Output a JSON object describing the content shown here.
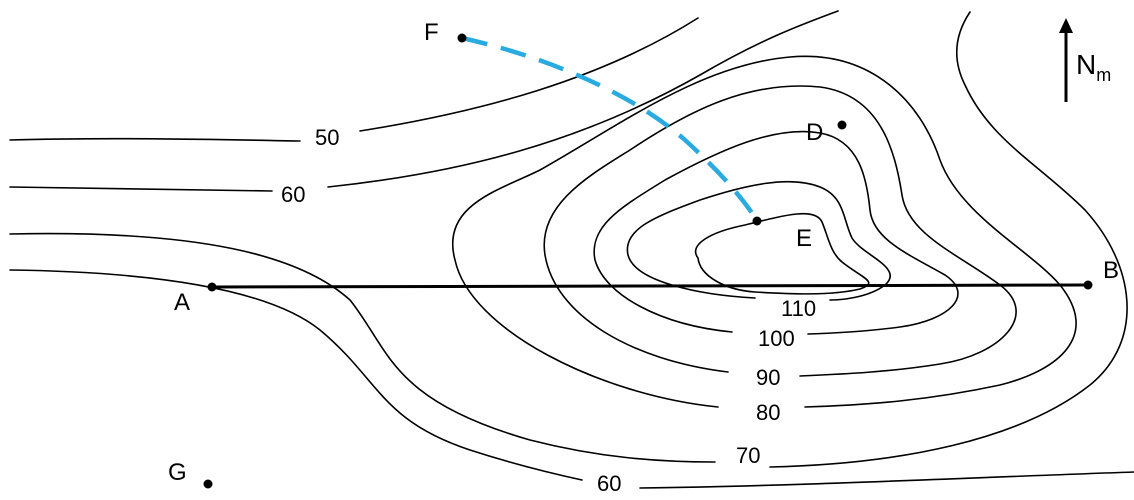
{
  "map": {
    "contour_labels": {
      "c50": "50",
      "c60_upper": "60",
      "c60_lower": "60",
      "c70": "70",
      "c80": "80",
      "c90": "90",
      "c100": "100",
      "c110": "110"
    },
    "points": {
      "A": "A",
      "B": "B",
      "D": "D",
      "E": "E",
      "F": "F",
      "G": "G"
    },
    "north_arrow": {
      "letter": "N",
      "subscript": "m"
    },
    "colors": {
      "contour": "#000000",
      "route_dashed": "#29abe2",
      "profile_line": "#000000"
    }
  }
}
